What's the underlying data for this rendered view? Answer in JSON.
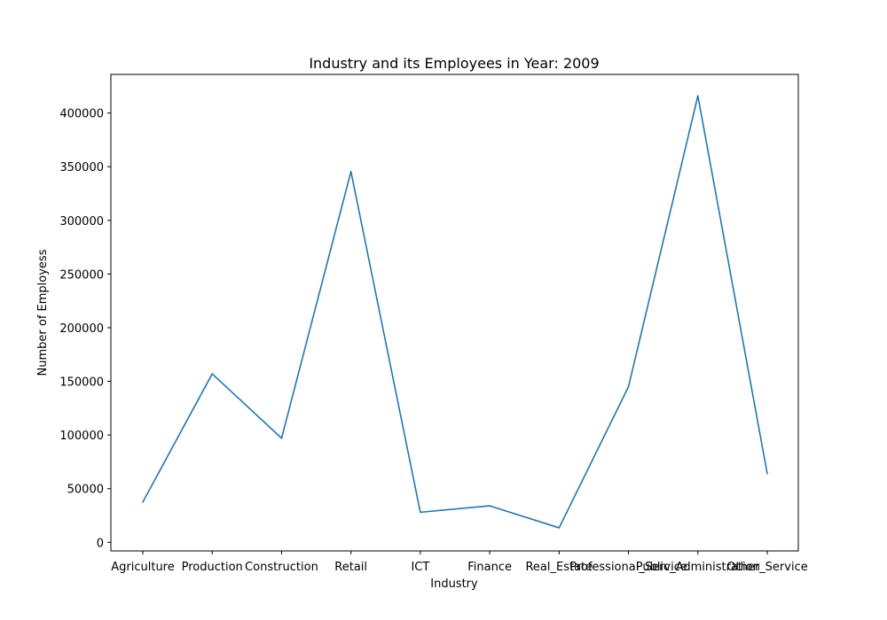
{
  "chart_data": {
    "type": "line",
    "title": "Industry and its Employees in Year: 2009",
    "xlabel": "Industry",
    "ylabel": "Number of Employess",
    "categories": [
      "Agriculture",
      "Production",
      "Construction",
      "Retail",
      "ICT",
      "Finance",
      "Real_Estate",
      "Professional_Service",
      "Public_Administration",
      "Other_Service"
    ],
    "series": [
      {
        "values": [
          37500,
          157000,
          97000,
          345500,
          28000,
          34000,
          13500,
          145000,
          416000,
          64000
        ]
      }
    ],
    "ylim": [
      -8000,
      436000
    ],
    "yticks": [
      0,
      50000,
      100000,
      150000,
      200000,
      250000,
      300000,
      350000,
      400000
    ],
    "ytick_labels": [
      "0",
      "50000",
      "100000",
      "150000",
      "200000",
      "250000",
      "300000",
      "350000",
      "400000"
    ],
    "grid": false,
    "line_color": "#1f77b4"
  }
}
